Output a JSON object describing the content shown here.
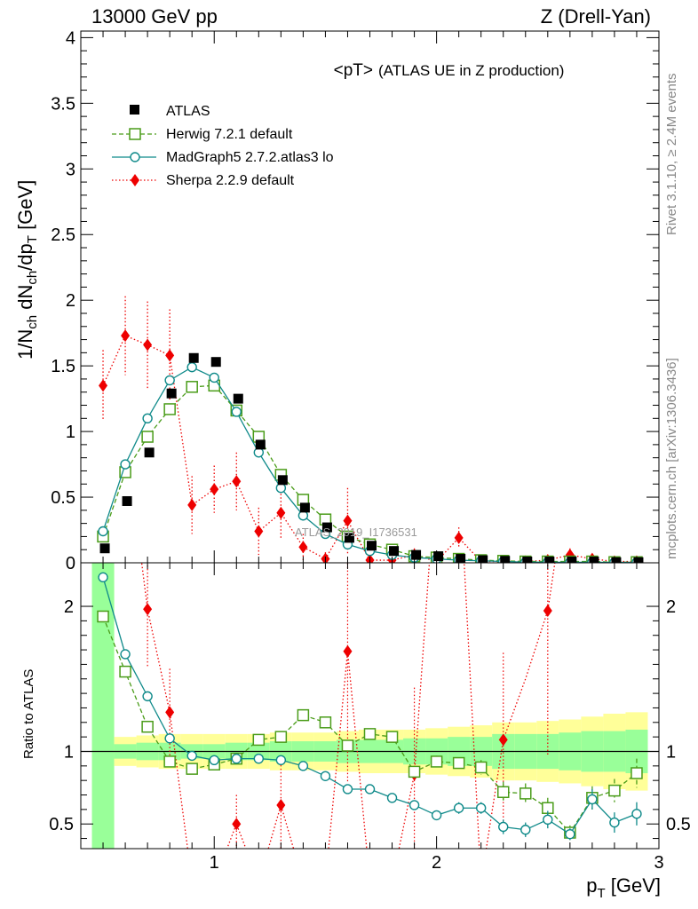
{
  "header": {
    "left": "13000 GeV pp",
    "right": "Z (Drell-Yan)"
  },
  "side_text": {
    "top": "Rivet 3.1.10, ≥ 2.4M events",
    "bottom": "mcplots.cern.ch [arXiv:1306.3436]"
  },
  "watermark": "ATLAS_2019_I1736531",
  "colors": {
    "atlas": "#000000",
    "herwig": "#4a9c19",
    "madgraph": "#0f8a8a",
    "sherpa": "#ee0000",
    "band_inner": "#99ff99",
    "band_outer": "#ffff99"
  },
  "chart_data": [
    {
      "type": "scatter",
      "title_main": "<pT>",
      "title_sub": "(ATLAS UE in Z production)",
      "ylabel_parts": [
        "1/N",
        "ch",
        " dN",
        "ch",
        "/dp",
        "T",
        " [GeV]"
      ],
      "xlim": [
        0.4,
        3.0
      ],
      "ylim": [
        0,
        4.05
      ],
      "yticks": [
        0,
        0.5,
        1,
        1.5,
        2,
        2.5,
        3,
        3.5,
        4
      ],
      "ytick_labels": [
        "0",
        "0.5",
        "1",
        "1.5",
        "2",
        "2.5",
        "3",
        "3.5",
        "4"
      ],
      "legend_placement": "top-left",
      "x": [
        0.5,
        0.6,
        0.7,
        0.8,
        0.9,
        1.0,
        1.1,
        1.2,
        1.3,
        1.4,
        1.5,
        1.6,
        1.7,
        1.8,
        1.9,
        2.0,
        2.1,
        2.2,
        2.3,
        2.4,
        2.5,
        2.6,
        2.7,
        2.8,
        2.9
      ],
      "series": [
        {
          "name": "ATLAS",
          "key": "atlas",
          "values": [
            0.11,
            0.47,
            0.84,
            1.29,
            1.56,
            1.53,
            1.25,
            0.9,
            0.63,
            0.42,
            0.27,
            0.19,
            0.13,
            0.09,
            0.06,
            0.05,
            0.03,
            0.02,
            0.015,
            0.01,
            0.01,
            0.01,
            0.01,
            0.005,
            0.005
          ]
        },
        {
          "name": "Herwig 7.2.1 default",
          "key": "herwig",
          "values": [
            0.2,
            0.69,
            0.96,
            1.17,
            1.34,
            1.35,
            1.16,
            0.96,
            0.67,
            0.48,
            0.33,
            0.2,
            0.14,
            0.1,
            0.05,
            0.04,
            0.03,
            0.02,
            0.015,
            0.01,
            0.01,
            0.01,
            0.01,
            0.005,
            0.005
          ]
        },
        {
          "name": "MadGraph5 2.7.2.atlas3 lo",
          "key": "madgraph",
          "values": [
            0.24,
            0.75,
            1.1,
            1.39,
            1.49,
            1.41,
            1.15,
            0.84,
            0.57,
            0.36,
            0.22,
            0.14,
            0.09,
            0.06,
            0.04,
            0.03,
            0.02,
            0.015,
            0.01,
            0.005,
            0.005,
            0.004,
            0.004,
            0.003,
            0.003
          ]
        },
        {
          "name": "Sherpa 2.2.9 default",
          "key": "sherpa",
          "values": [
            1.35,
            1.73,
            1.66,
            1.58,
            0.44,
            0.56,
            0.62,
            0.24,
            0.38,
            0.12,
            0.03,
            0.32,
            0.02,
            0.02,
            0.06,
            0.01,
            0.19,
            0.01,
            0.01,
            0.01,
            0.02,
            0.06,
            0.03,
            0.01,
            0.01
          ],
          "err": [
            0.27,
            0.3,
            0.33,
            0.35,
            0.22,
            0.18,
            0.22,
            0.18,
            0.2,
            0.1,
            0.05,
            0.25,
            0.03,
            0.03,
            0.05,
            0.02,
            0.08,
            0.02,
            0.02,
            0.02,
            0.03,
            0.05,
            0.03,
            0.02,
            0.02
          ]
        }
      ]
    },
    {
      "type": "scatter",
      "ylabel": "Ratio to ATLAS",
      "xlabel_parts": [
        "p",
        "T",
        " [GeV]"
      ],
      "xlim": [
        0.4,
        3.0
      ],
      "ylim": [
        0.33,
        2.3
      ],
      "xticks": [
        1,
        2,
        3
      ],
      "xtick_labels": [
        "1",
        "2",
        "3"
      ],
      "yticks": [
        0.5,
        1,
        2
      ],
      "ytick_labels": [
        "0.5",
        "1",
        "2"
      ],
      "reference_line": 1,
      "x": [
        0.5,
        0.6,
        0.7,
        0.8,
        0.9,
        1.0,
        1.1,
        1.2,
        1.3,
        1.4,
        1.5,
        1.6,
        1.7,
        1.8,
        1.9,
        2.0,
        2.1,
        2.2,
        2.3,
        2.4,
        2.5,
        2.6,
        2.7,
        2.8,
        2.9
      ],
      "band": {
        "inner_half": [
          1.5,
          0.05,
          0.06,
          0.06,
          0.05,
          0.05,
          0.06,
          0.06,
          0.07,
          0.07,
          0.07,
          0.08,
          0.08,
          0.08,
          0.09,
          0.09,
          0.1,
          0.1,
          0.12,
          0.12,
          0.12,
          0.13,
          0.14,
          0.14,
          0.15
        ],
        "outer_half": [
          1.8,
          0.1,
          0.11,
          0.12,
          0.12,
          0.12,
          0.12,
          0.12,
          0.13,
          0.13,
          0.13,
          0.14,
          0.15,
          0.15,
          0.15,
          0.16,
          0.17,
          0.18,
          0.2,
          0.2,
          0.21,
          0.22,
          0.24,
          0.26,
          0.27
        ]
      },
      "series": [
        {
          "name": "Herwig 7.2.1 default",
          "key": "herwig",
          "values": [
            1.93,
            1.55,
            1.17,
            0.93,
            0.88,
            0.91,
            0.95,
            1.08,
            1.1,
            1.25,
            1.2,
            1.04,
            1.12,
            1.1,
            0.86,
            0.93,
            0.92,
            0.89,
            0.72,
            0.71,
            0.61,
            0.44,
            0.68,
            0.73,
            0.85
          ],
          "err": [
            0,
            0,
            0,
            0,
            0,
            0,
            0,
            0,
            0,
            0,
            0,
            0.03,
            0.03,
            0.03,
            0.04,
            0.04,
            0.04,
            0.05,
            0.07,
            0.07,
            0.07,
            0.05,
            0.08,
            0.08,
            0.1
          ]
        },
        {
          "name": "MadGraph5 2.7.2.atlas3 lo",
          "key": "madgraph",
          "values": [
            2.2,
            1.67,
            1.38,
            1.09,
            0.97,
            0.94,
            0.95,
            0.95,
            0.94,
            0.9,
            0.83,
            0.74,
            0.74,
            0.68,
            0.63,
            0.56,
            0.61,
            0.61,
            0.48,
            0.46,
            0.53,
            0.43,
            0.67,
            0.51,
            0.57
          ],
          "err": [
            0,
            0,
            0,
            0,
            0,
            0,
            0,
            0,
            0,
            0,
            0,
            0.02,
            0.02,
            0.02,
            0.03,
            0.03,
            0.04,
            0.04,
            0.05,
            0.05,
            0.06,
            0.04,
            0.07,
            0.07,
            0.08
          ]
        },
        {
          "name": "Sherpa 2.2.9 default",
          "key": "sherpa",
          "values": [
            null,
            null,
            1.98,
            1.27,
            null,
            null,
            0.5,
            null,
            0.63,
            null,
            null,
            1.69,
            null,
            null,
            0.84,
            null,
            null,
            null,
            1.08,
            null,
            1.97,
            null,
            null,
            null,
            null
          ],
          "err": [
            0,
            0,
            0.4,
            0.3,
            0,
            0,
            0.2,
            0,
            0.3,
            0,
            0,
            0.9,
            0,
            0,
            0.6,
            0,
            0,
            0,
            0.6,
            0,
            1.0,
            0,
            0,
            0,
            0
          ]
        }
      ]
    }
  ]
}
